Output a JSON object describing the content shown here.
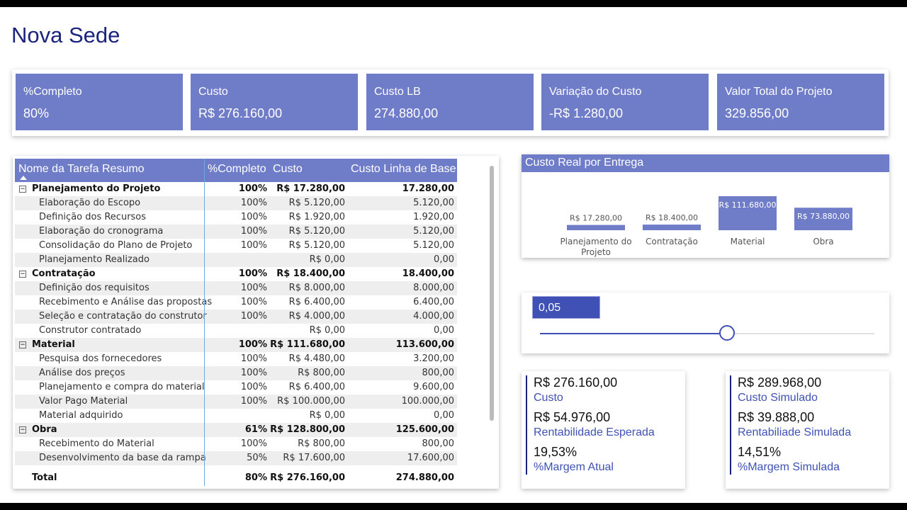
{
  "page": {
    "title": "Nova Sede"
  },
  "kpis": [
    {
      "label": "%Completo",
      "value": "80%"
    },
    {
      "label": "Custo",
      "value": "R$ 276.160,00"
    },
    {
      "label": "Custo LB",
      "value": "274.880,00"
    },
    {
      "label": "Variação do Custo",
      "value": "-R$ 1.280,00"
    },
    {
      "label": "Valor Total do Projeto",
      "value": "329.856,00"
    }
  ],
  "table": {
    "headers": {
      "name": "Nome da Tarefa Resumo",
      "pct": "%Completo",
      "cost": "Custo",
      "base": "Custo Linha de Base"
    },
    "rows": [
      {
        "type": "group",
        "name": "Planejamento do Projeto",
        "pct": "100%",
        "cost": "R$ 17.280,00",
        "base": "17.280,00"
      },
      {
        "type": "child",
        "name": "Elaboração do Escopo",
        "pct": "100%",
        "cost": "R$ 5.120,00",
        "base": "5.120,00"
      },
      {
        "type": "child",
        "name": "Definição dos Recursos",
        "pct": "100%",
        "cost": "R$ 1.920,00",
        "base": "1.920,00"
      },
      {
        "type": "child",
        "name": "Elaboração do cronograma",
        "pct": "100%",
        "cost": "R$ 5.120,00",
        "base": "5.120,00"
      },
      {
        "type": "child",
        "name": "Consolidação do Plano de Projeto",
        "pct": "100%",
        "cost": "R$ 5.120,00",
        "base": "5.120,00"
      },
      {
        "type": "child",
        "name": "Planejamento Realizado",
        "pct": "",
        "cost": "R$ 0,00",
        "base": "0,00"
      },
      {
        "type": "group",
        "name": "Contratação",
        "pct": "100%",
        "cost": "R$ 18.400,00",
        "base": "18.400,00"
      },
      {
        "type": "child",
        "name": "Definição dos requisitos",
        "pct": "100%",
        "cost": "R$ 8.000,00",
        "base": "8.000,00"
      },
      {
        "type": "child",
        "name": "Recebimento e Análise das propostas",
        "pct": "100%",
        "cost": "R$ 6.400,00",
        "base": "6.400,00"
      },
      {
        "type": "child",
        "name": "Seleção e contratação do construtor",
        "pct": "100%",
        "cost": "R$ 4.000,00",
        "base": "4.000,00"
      },
      {
        "type": "child",
        "name": "Construtor contratado",
        "pct": "",
        "cost": "R$ 0,00",
        "base": "0,00"
      },
      {
        "type": "group",
        "name": "Material",
        "pct": "100%",
        "cost": "R$ 111.680,00",
        "base": "113.600,00"
      },
      {
        "type": "child",
        "name": "Pesquisa dos fornecedores",
        "pct": "100%",
        "cost": "R$ 4.480,00",
        "base": "3.200,00"
      },
      {
        "type": "child",
        "name": "Análise dos preços",
        "pct": "100%",
        "cost": "R$ 800,00",
        "base": "800,00"
      },
      {
        "type": "child",
        "name": "Planejamento e compra do material",
        "pct": "100%",
        "cost": "R$ 6.400,00",
        "base": "9.600,00"
      },
      {
        "type": "child",
        "name": "Valor Pago Material",
        "pct": "100%",
        "cost": "R$ 100.000,00",
        "base": "100.000,00"
      },
      {
        "type": "child",
        "name": "Material adquirido",
        "pct": "",
        "cost": "R$ 0,00",
        "base": "0,00"
      },
      {
        "type": "group",
        "name": "Obra",
        "pct": "61%",
        "cost": "R$ 128.800,00",
        "base": "125.600,00"
      },
      {
        "type": "child",
        "name": "Recebimento do Material",
        "pct": "100%",
        "cost": "R$ 800,00",
        "base": "800,00"
      },
      {
        "type": "child",
        "name": "Desenvolvimento da base da rampa",
        "pct": "50%",
        "cost": "R$ 17.600,00",
        "base": "17.600,00"
      }
    ],
    "total": {
      "name": "Total",
      "pct": "80%",
      "cost": "R$ 276.160,00",
      "base": "274.880,00"
    }
  },
  "chart_data": {
    "type": "bar",
    "title": "Custo Real por Entrega",
    "categories": [
      "Planejamento do Projeto",
      "Contratação",
      "Material",
      "Obra"
    ],
    "values": [
      17280,
      18400,
      111680,
      73880
    ],
    "data_labels": [
      "R$ 17.280,00",
      "R$ 18.400,00",
      "R$ 111.680,00",
      "R$ 73.880,00"
    ],
    "color": "#6f7cc8",
    "grid": false
  },
  "slider": {
    "value_text": "0,05",
    "fraction": 0.56
  },
  "cards": [
    {
      "items": [
        {
          "value": "R$ 276.160,00",
          "label": "Custo"
        },
        {
          "value": "R$ 54.976,00",
          "label": "Rentabilidade Esperada"
        },
        {
          "value": "19,53%",
          "label": "%Margem Atual"
        }
      ]
    },
    {
      "items": [
        {
          "value": "R$ 289.968,00",
          "label": "Custo Simulado"
        },
        {
          "value": "R$ 39.888,00",
          "label": "Rentabiliade Simulada"
        },
        {
          "value": "14,51%",
          "label": "%Margem Simulada"
        }
      ]
    }
  ],
  "colors": {
    "accent": "#6f7cc8",
    "dark": "#1a237e",
    "slider": "#3f51b5"
  }
}
